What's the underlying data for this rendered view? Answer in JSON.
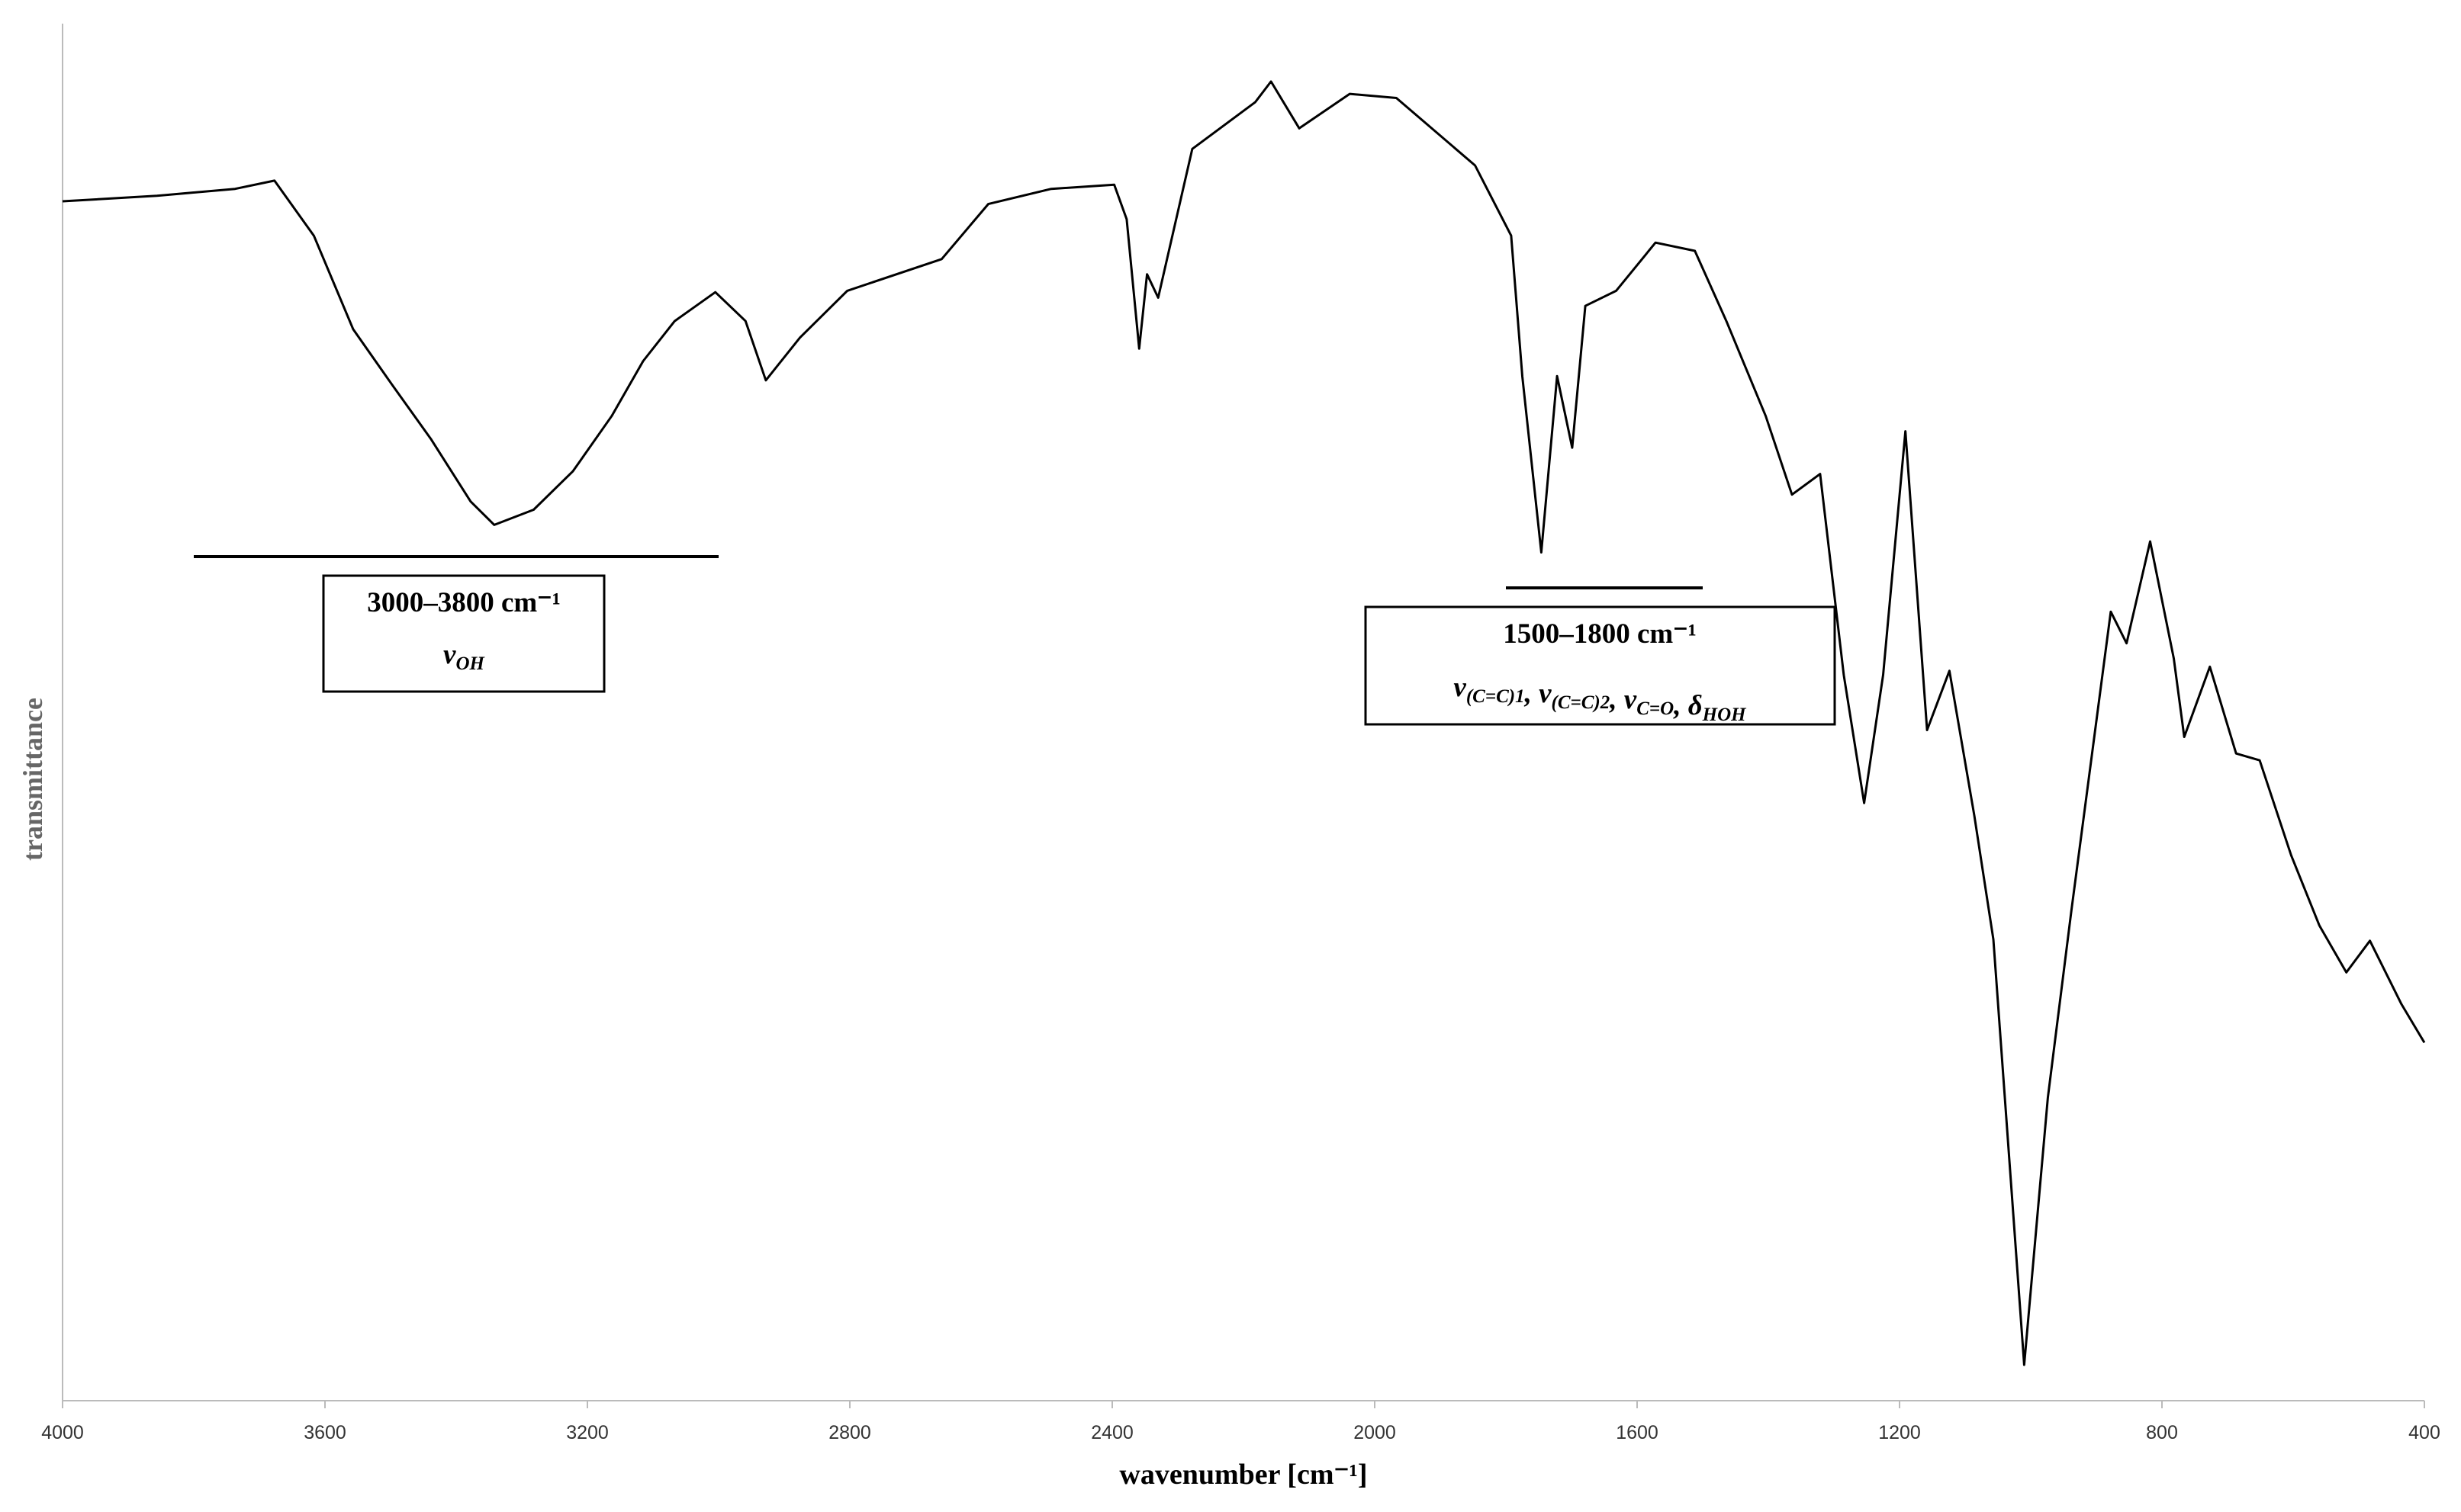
{
  "chart_data": {
    "type": "line",
    "xlabel": "wavenumber [cm⁻¹]",
    "ylabel": "transmittance",
    "xlim": [
      4000,
      400
    ],
    "ylim": [
      0,
      100
    ],
    "xticks": [
      4000,
      3600,
      3200,
      2800,
      2400,
      2000,
      1600,
      1200,
      800,
      400
    ],
    "color": "#000000",
    "x": [
      4000,
      3856,
      3737,
      3677,
      3617,
      3557,
      3498,
      3438,
      3378,
      3342,
      3282,
      3222,
      3163,
      3115,
      3067,
      3005,
      2959,
      2928,
      2876,
      2804,
      2660,
      2589,
      2493,
      2397,
      2378,
      2359,
      2347,
      2330,
      2278,
      2182,
      2158,
      2115,
      2038,
      1967,
      1847,
      1792,
      1775,
      1746,
      1722,
      1699,
      1679,
      1632,
      1572,
      1512,
      1464,
      1404,
      1364,
      1321,
      1285,
      1254,
      1225,
      1191,
      1158,
      1124,
      1086,
      1057,
      1010,
      974,
      938,
      878,
      854,
      818,
      782,
      766,
      727,
      687,
      651,
      603,
      560,
      519,
      483,
      435,
      400
    ],
    "values": [
      87.1,
      87.5,
      88.0,
      88.6,
      84.6,
      77.8,
      73.8,
      69.8,
      65.3,
      63.6,
      64.7,
      67.5,
      71.5,
      75.5,
      78.4,
      80.5,
      78.4,
      74.1,
      77.2,
      80.6,
      82.9,
      86.9,
      88.0,
      88.3,
      85.8,
      76.4,
      81.8,
      80.1,
      90.9,
      94.3,
      95.8,
      92.4,
      94.9,
      94.6,
      89.7,
      84.6,
      74.4,
      61.6,
      74.4,
      69.2,
      79.5,
      80.6,
      84.1,
      83.5,
      78.4,
      71.5,
      65.8,
      67.3,
      52.7,
      43.4,
      52.7,
      70.4,
      48.7,
      53.0,
      42.5,
      33.5,
      2.6,
      22.0,
      35.6,
      57.3,
      55.0,
      62.4,
      53.9,
      48.2,
      53.3,
      47.0,
      46.5,
      39.6,
      34.5,
      31.1,
      33.4,
      28.8,
      26.0
    ],
    "annotations": [
      {
        "range": [
          3800,
          3000
        ],
        "lines": [
          [
            {
              "text": "3000–3800 cm⁻¹"
            }
          ],
          [
            {
              "text": "ν"
            },
            {
              "sub": "OH"
            }
          ]
        ]
      },
      {
        "range": [
          1800,
          1500
        ],
        "lines": [
          [
            {
              "text": "1500–1800 cm⁻¹"
            }
          ],
          [
            {
              "text": "ν"
            },
            {
              "sub": "(C=C)1"
            },
            {
              "text": ", ν"
            },
            {
              "sub": "(C=C)2"
            },
            {
              "text": ", ν"
            },
            {
              "sub": "C=O"
            },
            {
              "text": ", δ"
            },
            {
              "sub": "HOH"
            }
          ]
        ]
      }
    ]
  }
}
